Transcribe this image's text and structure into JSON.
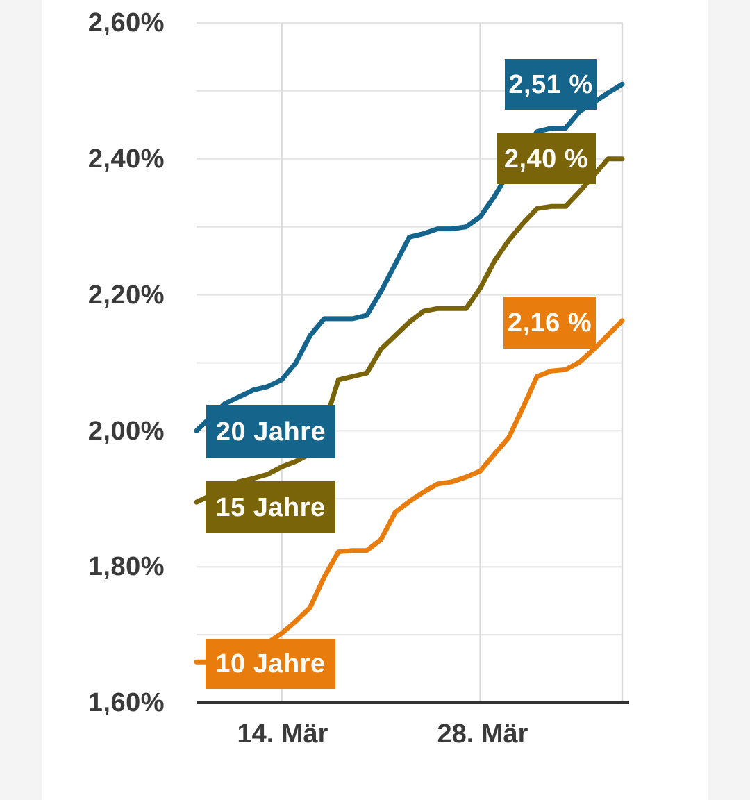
{
  "chart_data": {
    "type": "line",
    "title": "",
    "x_tick_labels": [
      "14. Mär",
      "28. Mär"
    ],
    "x_tick_day_indices": [
      6,
      20
    ],
    "x_gridline_days": [
      6,
      20,
      30
    ],
    "n_points": 31,
    "ylim": [
      1.6,
      2.6
    ],
    "y_gridlines": [
      2.6,
      2.5,
      2.4,
      2.3,
      2.2,
      2.1,
      2.0,
      1.9,
      1.8,
      1.7
    ],
    "y_tick_labels": [
      "2,60%",
      "2,40%",
      "2,20%",
      "2,00%",
      "1,80%",
      "1,60%"
    ],
    "y_tick_values": [
      2.6,
      2.4,
      2.2,
      2.0,
      1.8,
      1.6
    ],
    "grid": true,
    "legend_position": "on-line-start-boxes",
    "series": [
      {
        "name": "20 Jahre",
        "end_label": "2,51 %",
        "color": "#15648c",
        "values": [
          2.0,
          2.02,
          2.04,
          2.05,
          2.06,
          2.065,
          2.075,
          2.1,
          2.14,
          2.165,
          2.165,
          2.165,
          2.17,
          2.205,
          2.245,
          2.285,
          2.29,
          2.297,
          2.297,
          2.3,
          2.315,
          2.345,
          2.38,
          2.41,
          2.44,
          2.445,
          2.445,
          2.47,
          2.483,
          2.497,
          2.51
        ]
      },
      {
        "name": "15 Jahre",
        "end_label": "2,40 %",
        "color": "#7a640a",
        "values": [
          1.895,
          1.905,
          1.915,
          1.925,
          1.93,
          1.936,
          1.947,
          1.955,
          1.966,
          2.008,
          2.075,
          2.08,
          2.085,
          2.12,
          2.14,
          2.16,
          2.176,
          2.18,
          2.18,
          2.18,
          2.21,
          2.25,
          2.28,
          2.305,
          2.327,
          2.33,
          2.33,
          2.352,
          2.376,
          2.4,
          2.4
        ]
      },
      {
        "name": "10 Jahre",
        "end_label": "2,16 %",
        "color": "#e87d0e",
        "values": [
          1.66,
          1.66,
          1.665,
          1.67,
          1.677,
          1.688,
          1.702,
          1.72,
          1.74,
          1.785,
          1.822,
          1.824,
          1.824,
          1.84,
          1.88,
          1.896,
          1.91,
          1.922,
          1.925,
          1.932,
          1.941,
          1.966,
          1.99,
          2.034,
          2.08,
          2.088,
          2.09,
          2.101,
          2.12,
          2.141,
          2.162
        ]
      }
    ],
    "colors": {
      "text": "#3a3a3a",
      "gridline_horizontal": "#e4e4e4",
      "gridline_vertical": "#d9d9d9",
      "axis": "#333333",
      "page_margin": "#f4f4f4",
      "label_text": "#fdfbf5"
    }
  }
}
